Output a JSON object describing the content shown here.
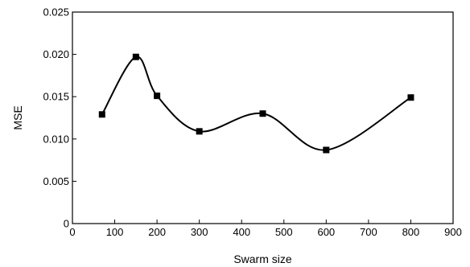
{
  "chart_data": {
    "type": "line",
    "xlabel": "Swarm size",
    "ylabel": "MSE",
    "xlim": [
      0,
      900
    ],
    "ylim": [
      0,
      0.025
    ],
    "x_ticks": [
      0,
      100,
      200,
      300,
      400,
      500,
      600,
      700,
      800,
      900
    ],
    "y_ticks": [
      0,
      0.005,
      0.01,
      0.015,
      0.02,
      0.025
    ],
    "x_tick_labels": [
      "0",
      "100",
      "200",
      "300",
      "400",
      "500",
      "600",
      "700",
      "800",
      "900"
    ],
    "y_tick_labels": [
      "0",
      "0.005",
      "0.010",
      "0.015",
      "0.020",
      "0.025"
    ],
    "grid": false,
    "legend": "none",
    "smooth": true,
    "series": [
      {
        "color": "#000000",
        "marker": "square",
        "x": [
          70,
          150,
          200,
          300,
          450,
          600,
          800
        ],
        "y": [
          0.0129,
          0.0197,
          0.0151,
          0.0109,
          0.013,
          0.0087,
          0.0149
        ]
      }
    ]
  }
}
